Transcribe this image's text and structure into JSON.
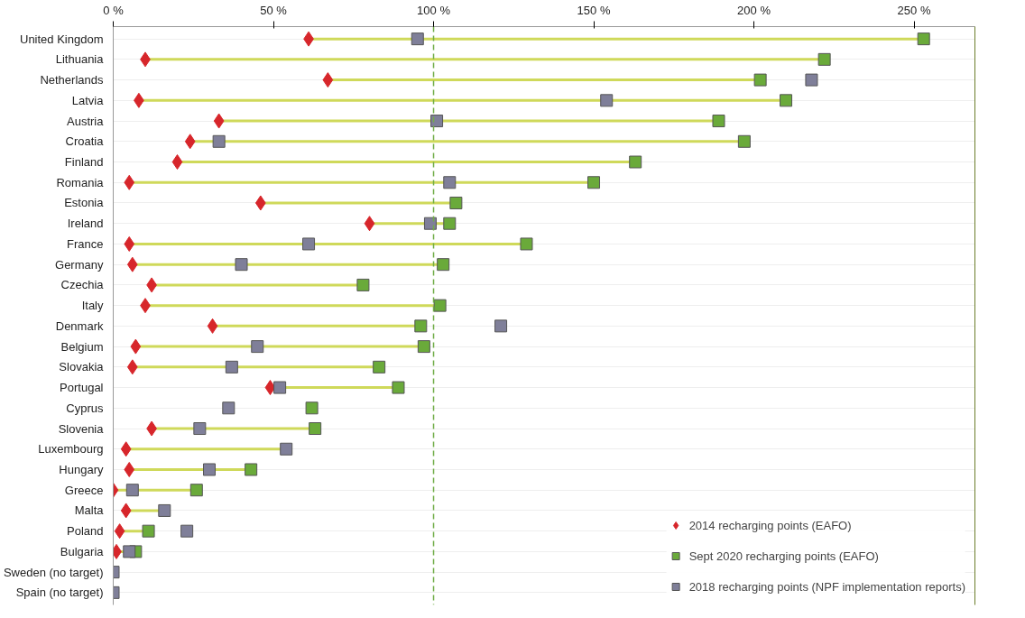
{
  "chart_data": {
    "type": "scatter",
    "orientation": "horizontal",
    "categories": [
      "United Kingdom",
      "Lithuania",
      "Netherlands",
      "Latvia",
      "Austria",
      "Croatia",
      "Finland",
      "Romania",
      "Estonia",
      "Ireland",
      "France",
      "Germany",
      "Czechia",
      "Italy",
      "Denmark",
      "Belgium",
      "Slovakia",
      "Portugal",
      "Cyprus",
      "Slovenia",
      "Luxembourg",
      "Hungary",
      "Greece",
      "Malta",
      "Poland",
      "Bulgaria",
      "Sweden (no target)",
      "Spain (no target)"
    ],
    "series": [
      {
        "name": "2014 recharging points (EAFO)",
        "color": "#d7262b",
        "marker": "diamond",
        "values": [
          61,
          10,
          67,
          8,
          33,
          24,
          20,
          5,
          46,
          80,
          5,
          6,
          12,
          10,
          31,
          7,
          6,
          49,
          null,
          12,
          4,
          5,
          0,
          4,
          2,
          1,
          null,
          null
        ]
      },
      {
        "name": "Sept 2020 recharging points (EAFO)",
        "color": "#6aaa3a",
        "marker": "square",
        "values": [
          253,
          222,
          202,
          210,
          189,
          197,
          163,
          150,
          107,
          105,
          129,
          103,
          78,
          102,
          96,
          97,
          83,
          89,
          62,
          63,
          null,
          43,
          26,
          null,
          11,
          7,
          null,
          null
        ]
      },
      {
        "name": "2018 recharging points (NPF implementation reports)",
        "color": "#7f7f99",
        "marker": "square",
        "values": [
          95,
          null,
          218,
          154,
          101,
          33,
          null,
          105,
          null,
          99,
          61,
          40,
          null,
          null,
          121,
          45,
          37,
          52,
          36,
          27,
          54,
          30,
          6,
          16,
          23,
          5,
          0,
          0
        ]
      }
    ],
    "xlim": [
      0,
      269
    ],
    "xticks": [
      {
        "value": 0,
        "label": "0 %"
      },
      {
        "value": 50,
        "label": "50 %"
      },
      {
        "value": 100,
        "label": "100 %"
      },
      {
        "value": 150,
        "label": "150 %"
      },
      {
        "value": 200,
        "label": "200 %"
      },
      {
        "value": 250,
        "label": "250 %"
      }
    ],
    "ref_lines": [
      {
        "axis": "x",
        "value": 100,
        "color": "#70ad47",
        "line_style": "dashed"
      }
    ],
    "grid": "y",
    "legend": "bottom right"
  }
}
